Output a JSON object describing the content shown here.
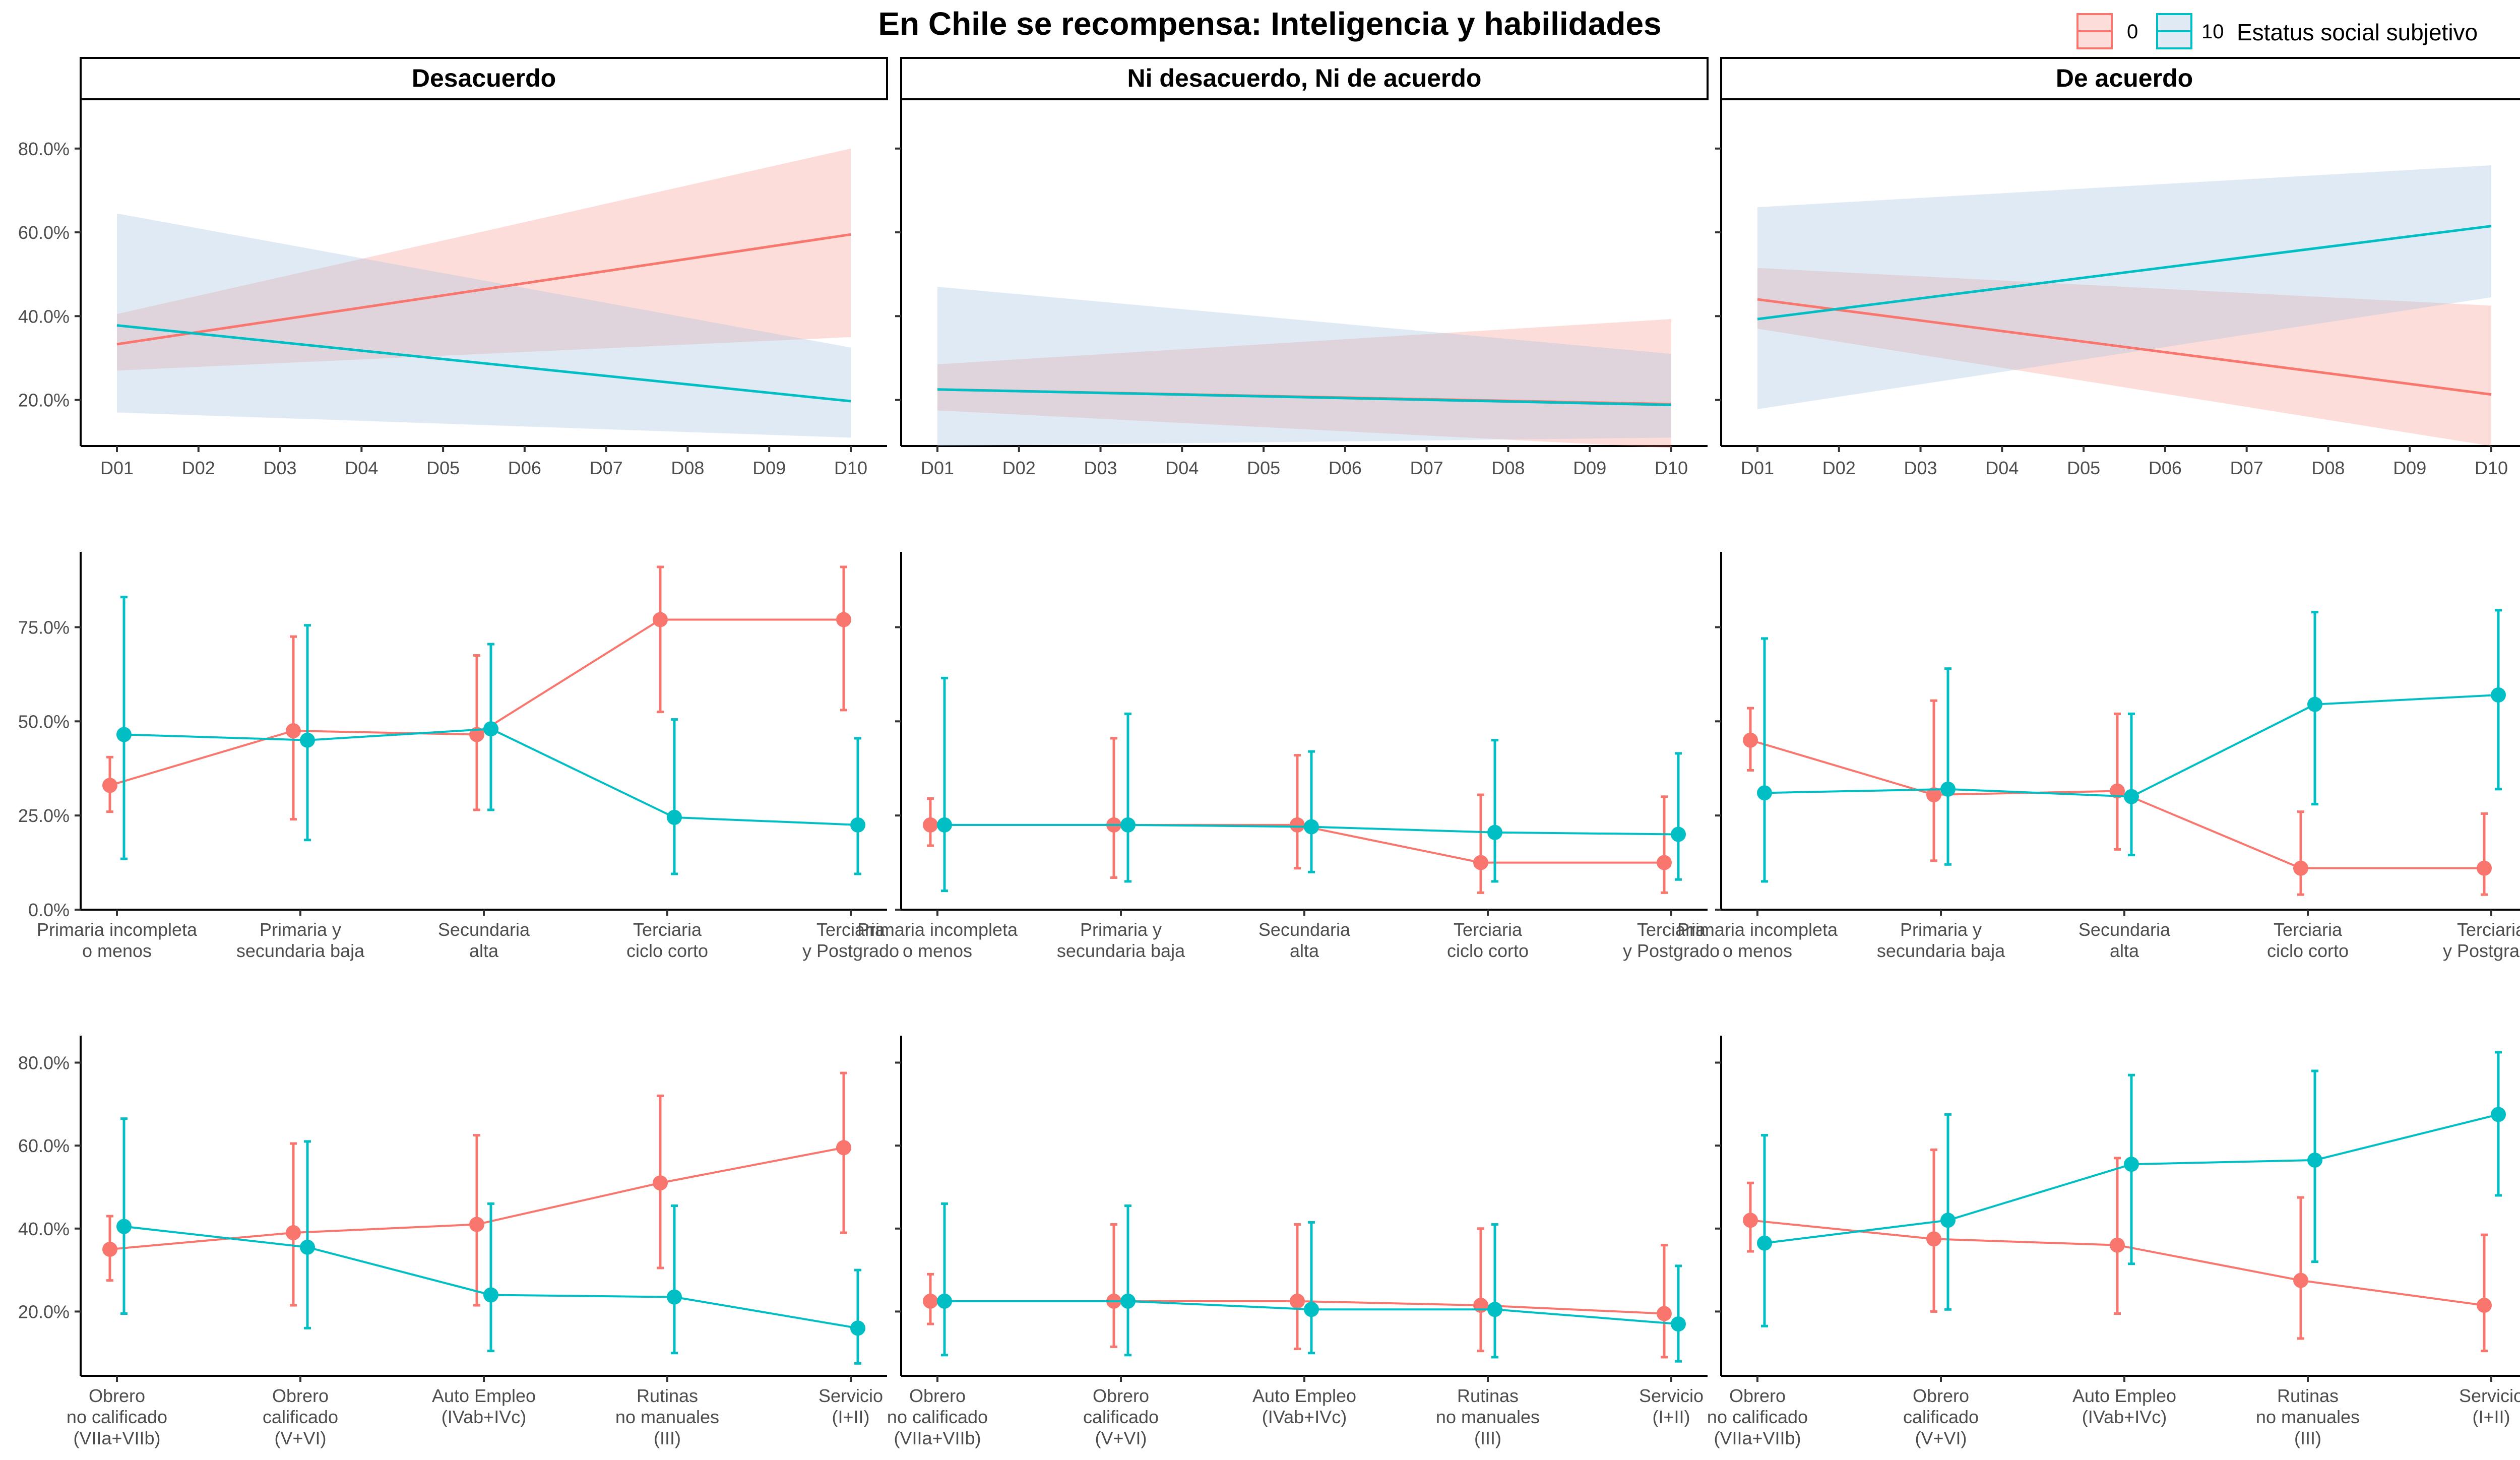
{
  "title": "En Chile se recompensa: Inteligencia y habilidades",
  "legend": {
    "title": "Estatus social subjetivo",
    "items": [
      {
        "label": "0",
        "color": "#F8766D"
      },
      {
        "label": "10",
        "color": "#00BFC4"
      }
    ],
    "ribbon_fills": {
      "0": "#F8766D",
      "10": "#A6C4E0"
    }
  },
  "facets": [
    "Desacuerdo",
    "Ni desacuerdo, Ni de acuerdo",
    "De acuerdo"
  ],
  "chart_data": [
    {
      "type": "line",
      "x": [
        "D01",
        "D02",
        "D03",
        "D04",
        "D05",
        "D06",
        "D07",
        "D08",
        "D09",
        "D10"
      ],
      "y_ticks": [
        "20.0%",
        "40.0%",
        "60.0%",
        "80.0%"
      ],
      "ylim": [
        0.09,
        0.92
      ],
      "panels": [
        {
          "facet": "Desacuerdo",
          "series": [
            {
              "name": "0",
              "start": 0.333,
              "end": 0.595,
              "lower_start": 0.27,
              "lower_end": 0.35,
              "upper_start": 0.405,
              "upper_end": 0.8
            },
            {
              "name": "10",
              "start": 0.378,
              "end": 0.197,
              "lower_start": 0.17,
              "lower_end": 0.11,
              "upper_start": 0.645,
              "upper_end": 0.325
            }
          ]
        },
        {
          "facet": "Ni desacuerdo, Ni de acuerdo",
          "series": [
            {
              "name": "0",
              "start": 0.225,
              "end": 0.19,
              "lower_start": 0.175,
              "lower_end": 0.085,
              "upper_start": 0.285,
              "upper_end": 0.393
            },
            {
              "name": "10",
              "start": 0.225,
              "end": 0.188,
              "lower_start": 0.09,
              "lower_end": 0.11,
              "upper_start": 0.47,
              "upper_end": 0.31
            }
          ]
        },
        {
          "facet": "De acuerdo",
          "series": [
            {
              "name": "0",
              "start": 0.44,
              "end": 0.213,
              "lower_start": 0.37,
              "lower_end": 0.09,
              "upper_start": 0.515,
              "upper_end": 0.425
            },
            {
              "name": "10",
              "start": 0.393,
              "end": 0.615,
              "lower_start": 0.178,
              "lower_end": 0.445,
              "upper_start": 0.66,
              "upper_end": 0.76
            }
          ]
        }
      ]
    },
    {
      "type": "line",
      "categories": [
        "Primaria incompleta\no  menos",
        "Primaria y\nsecundaria baja",
        "Secundaria\nalta",
        "Terciaria\nciclo corto",
        "Terciaria\ny Postgrado"
      ],
      "y_ticks": [
        "0.0%",
        "25.0%",
        "50.0%",
        "75.0%"
      ],
      "ylim": [
        0.0,
        0.95
      ],
      "panels": [
        {
          "facet": "Desacuerdo",
          "series": [
            {
              "name": "0",
              "values": [
                0.33,
                0.475,
                0.465,
                0.77,
                0.77
              ],
              "lower": [
                0.26,
                0.24,
                0.265,
                0.525,
                0.53
              ],
              "upper": [
                0.405,
                0.725,
                0.675,
                0.91,
                0.91
              ]
            },
            {
              "name": "10",
              "values": [
                0.465,
                0.45,
                0.48,
                0.245,
                0.225
              ],
              "lower": [
                0.135,
                0.185,
                0.265,
                0.095,
                0.095
              ],
              "upper": [
                0.83,
                0.755,
                0.705,
                0.505,
                0.455
              ]
            }
          ]
        },
        {
          "facet": "Ni desacuerdo, Ni de acuerdo",
          "series": [
            {
              "name": "0",
              "values": [
                0.225,
                0.225,
                0.225,
                0.125,
                0.125
              ],
              "lower": [
                0.17,
                0.085,
                0.11,
                0.045,
                0.045
              ],
              "upper": [
                0.295,
                0.455,
                0.41,
                0.305,
                0.3
              ]
            },
            {
              "name": "10",
              "values": [
                0.225,
                0.225,
                0.22,
                0.205,
                0.2
              ],
              "lower": [
                0.05,
                0.075,
                0.1,
                0.075,
                0.08
              ],
              "upper": [
                0.615,
                0.52,
                0.42,
                0.45,
                0.415
              ]
            }
          ]
        },
        {
          "facet": "De acuerdo",
          "series": [
            {
              "name": "0",
              "values": [
                0.45,
                0.305,
                0.315,
                0.11,
                0.11
              ],
              "lower": [
                0.37,
                0.13,
                0.16,
                0.04,
                0.04
              ],
              "upper": [
                0.535,
                0.555,
                0.52,
                0.26,
                0.255
              ]
            },
            {
              "name": "10",
              "values": [
                0.31,
                0.32,
                0.3,
                0.545,
                0.57
              ],
              "lower": [
                0.075,
                0.12,
                0.145,
                0.28,
                0.32
              ],
              "upper": [
                0.72,
                0.64,
                0.52,
                0.79,
                0.795
              ]
            }
          ]
        }
      ]
    },
    {
      "type": "line",
      "categories": [
        "Obrero\nno calificado\n(VIIa+VIIb)",
        "Obrero\ncalificado\n(V+VI)",
        "Auto Empleo\n(IVab+IVc)",
        "Rutinas\nno manuales\n(III)",
        "Servicio\n(I+II)"
      ],
      "y_ticks": [
        "20.0%",
        "40.0%",
        "60.0%",
        "80.0%"
      ],
      "ylim": [
        0.045,
        0.865
      ],
      "panels": [
        {
          "facet": "Desacuerdo",
          "series": [
            {
              "name": "0",
              "values": [
                0.35,
                0.39,
                0.41,
                0.51,
                0.595
              ],
              "lower": [
                0.275,
                0.215,
                0.215,
                0.305,
                0.39
              ],
              "upper": [
                0.43,
                0.605,
                0.625,
                0.72,
                0.775
              ]
            },
            {
              "name": "10",
              "values": [
                0.405,
                0.355,
                0.24,
                0.235,
                0.16
              ],
              "lower": [
                0.195,
                0.16,
                0.105,
                0.1,
                0.075
              ],
              "upper": [
                0.665,
                0.61,
                0.46,
                0.455,
                0.3
              ]
            }
          ]
        },
        {
          "facet": "Ni desacuerdo, Ni de acuerdo",
          "series": [
            {
              "name": "0",
              "values": [
                0.225,
                0.225,
                0.225,
                0.215,
                0.195
              ],
              "lower": [
                0.17,
                0.115,
                0.11,
                0.105,
                0.09
              ],
              "upper": [
                0.29,
                0.41,
                0.41,
                0.4,
                0.36
              ]
            },
            {
              "name": "10",
              "values": [
                0.225,
                0.225,
                0.205,
                0.205,
                0.17
              ],
              "lower": [
                0.095,
                0.095,
                0.1,
                0.09,
                0.08
              ],
              "upper": [
                0.46,
                0.455,
                0.415,
                0.41,
                0.31
              ]
            }
          ]
        },
        {
          "facet": "De acuerdo",
          "series": [
            {
              "name": "0",
              "values": [
                0.42,
                0.375,
                0.36,
                0.275,
                0.215
              ],
              "lower": [
                0.345,
                0.2,
                0.195,
                0.135,
                0.105
              ],
              "upper": [
                0.51,
                0.59,
                0.57,
                0.475,
                0.385
              ]
            },
            {
              "name": "10",
              "values": [
                0.365,
                0.42,
                0.555,
                0.565,
                0.675
              ],
              "lower": [
                0.165,
                0.205,
                0.315,
                0.32,
                0.48
              ],
              "upper": [
                0.625,
                0.675,
                0.77,
                0.78,
                0.825
              ]
            }
          ]
        }
      ]
    }
  ]
}
